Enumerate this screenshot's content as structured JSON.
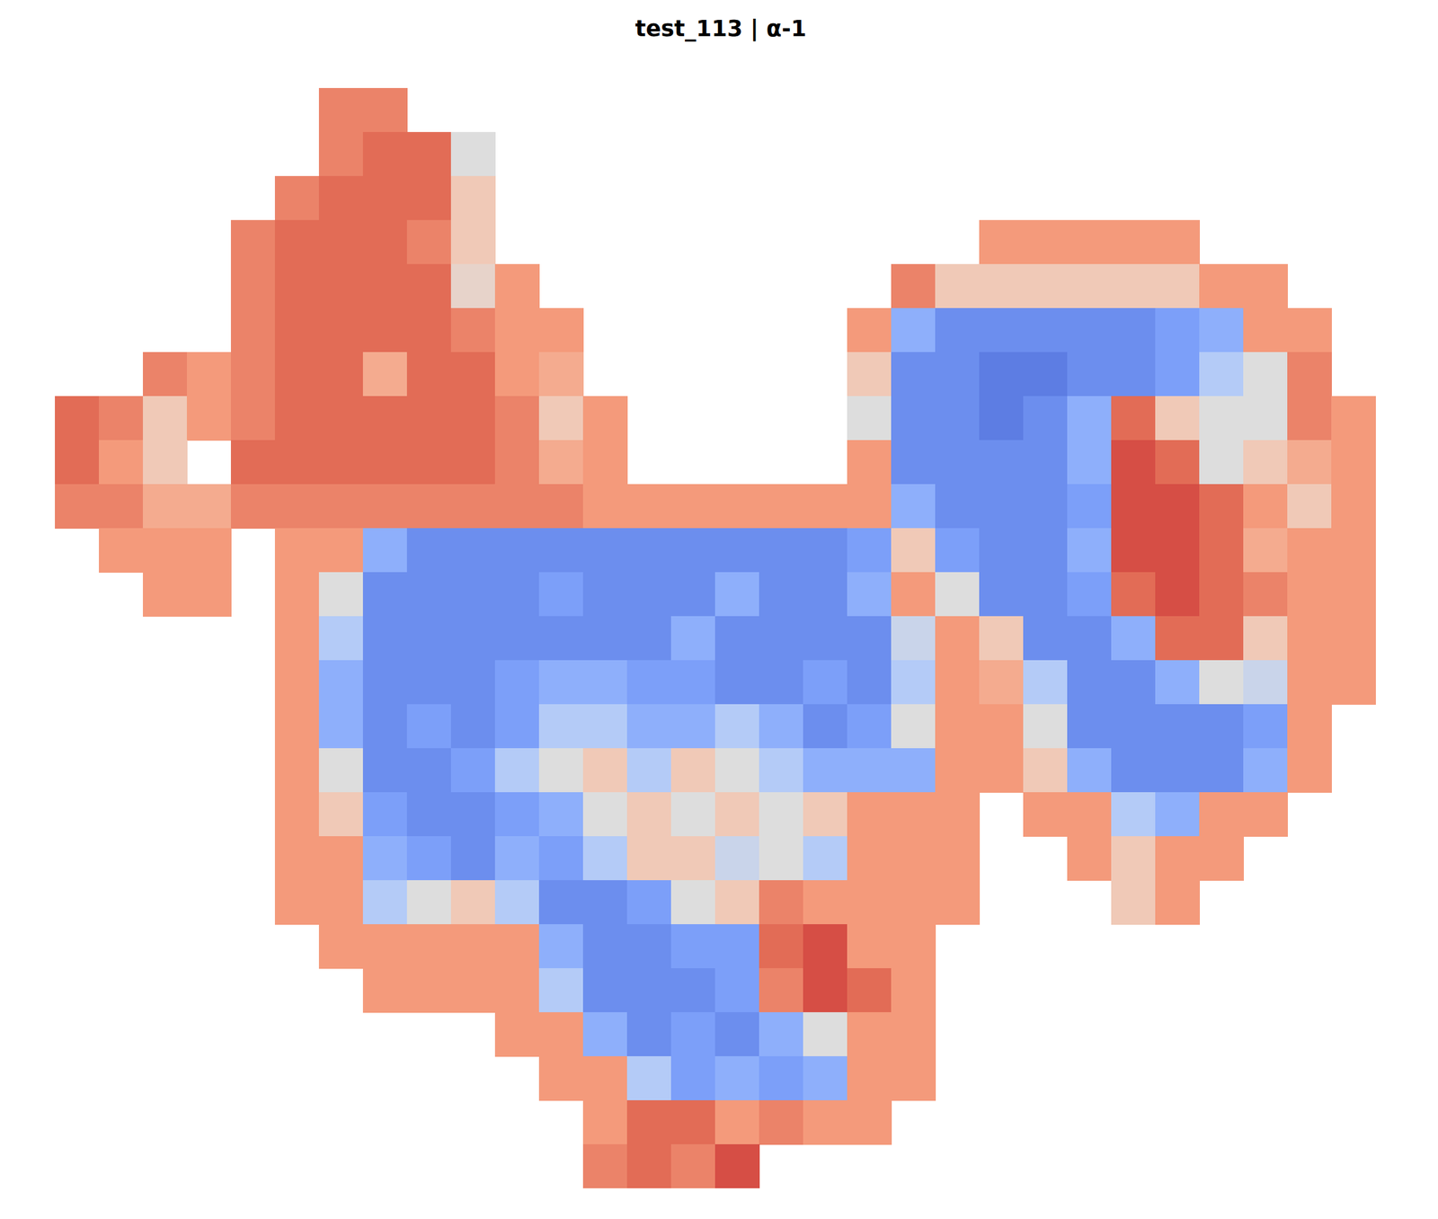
{
  "chart_data": {
    "type": "heatmap",
    "title": "test_113 | α-1",
    "tick_labels": false,
    "grid": false,
    "zlim": [
      0,
      1
    ],
    "z": [
      [
        null,
        null,
        null,
        null,
        null,
        null,
        0.8,
        0.8,
        null,
        null,
        null,
        null,
        null,
        null,
        null,
        null,
        null,
        null,
        null,
        null,
        null,
        null,
        null,
        null,
        null,
        null,
        null,
        null,
        null,
        null,
        null
      ],
      [
        null,
        null,
        null,
        null,
        null,
        null,
        0.8,
        0.85,
        0.85,
        0.5,
        null,
        null,
        null,
        null,
        null,
        null,
        null,
        null,
        null,
        null,
        null,
        null,
        null,
        null,
        null,
        null,
        null,
        null,
        null,
        null,
        null
      ],
      [
        null,
        null,
        null,
        null,
        null,
        0.8,
        0.85,
        0.85,
        0.85,
        0.6,
        null,
        null,
        null,
        null,
        null,
        null,
        null,
        null,
        null,
        null,
        null,
        null,
        null,
        null,
        null,
        null,
        null,
        null,
        null,
        null,
        null
      ],
      [
        null,
        null,
        null,
        null,
        0.8,
        0.85,
        0.85,
        0.85,
        0.8,
        0.6,
        null,
        null,
        null,
        null,
        null,
        null,
        null,
        null,
        null,
        null,
        null,
        0.75,
        0.75,
        0.75,
        0.75,
        0.75,
        null,
        null,
        null,
        null,
        null
      ],
      [
        null,
        null,
        null,
        null,
        0.8,
        0.85,
        0.85,
        0.85,
        0.85,
        0.55,
        0.75,
        null,
        null,
        null,
        null,
        null,
        null,
        null,
        null,
        0.8,
        0.6,
        0.6,
        0.6,
        0.6,
        0.6,
        0.6,
        0.75,
        0.75,
        null,
        null,
        null
      ],
      [
        null,
        null,
        null,
        null,
        0.8,
        0.85,
        0.85,
        0.85,
        0.85,
        0.8,
        0.75,
        0.75,
        null,
        null,
        null,
        null,
        null,
        null,
        0.75,
        0.3,
        0.2,
        0.2,
        0.2,
        0.2,
        0.2,
        0.25,
        0.3,
        0.75,
        0.75,
        null,
        null
      ],
      [
        null,
        null,
        0.8,
        0.75,
        0.8,
        0.85,
        0.85,
        0.7,
        0.85,
        0.85,
        0.75,
        0.7,
        null,
        null,
        null,
        null,
        null,
        null,
        0.6,
        0.2,
        0.2,
        0.15,
        0.15,
        0.2,
        0.2,
        0.25,
        0.4,
        0.5,
        0.8,
        null,
        null
      ],
      [
        0.85,
        0.8,
        0.6,
        0.75,
        0.8,
        0.85,
        0.85,
        0.85,
        0.85,
        0.85,
        0.8,
        0.6,
        0.75,
        null,
        null,
        null,
        null,
        null,
        0.5,
        0.2,
        0.2,
        0.15,
        0.2,
        0.3,
        0.85,
        0.6,
        0.5,
        0.5,
        0.8,
        0.75,
        null
      ],
      [
        0.85,
        0.75,
        0.6,
        null,
        0.85,
        0.85,
        0.85,
        0.85,
        0.85,
        0.85,
        0.8,
        0.7,
        0.75,
        null,
        null,
        null,
        null,
        null,
        0.75,
        0.2,
        0.2,
        0.2,
        0.2,
        0.3,
        0.9,
        0.85,
        0.5,
        0.6,
        0.7,
        0.75,
        null
      ],
      [
        0.8,
        0.8,
        0.7,
        0.7,
        0.8,
        0.8,
        0.8,
        0.8,
        0.8,
        0.8,
        0.8,
        0.8,
        0.75,
        0.75,
        0.75,
        0.75,
        0.75,
        0.75,
        0.75,
        0.3,
        0.2,
        0.2,
        0.2,
        0.25,
        0.9,
        0.9,
        0.85,
        0.75,
        0.6,
        0.75,
        null
      ],
      [
        null,
        0.75,
        0.75,
        0.75,
        null,
        0.75,
        0.75,
        0.3,
        0.2,
        0.2,
        0.2,
        0.2,
        0.2,
        0.2,
        0.2,
        0.2,
        0.2,
        0.2,
        0.25,
        0.6,
        0.25,
        0.2,
        0.2,
        0.3,
        0.9,
        0.9,
        0.85,
        0.7,
        0.75,
        0.75,
        null
      ],
      [
        null,
        null,
        0.75,
        0.75,
        null,
        0.75,
        0.5,
        0.2,
        0.2,
        0.2,
        0.2,
        0.25,
        0.2,
        0.2,
        0.2,
        0.3,
        0.2,
        0.2,
        0.3,
        0.75,
        0.5,
        0.2,
        0.2,
        0.25,
        0.85,
        0.9,
        0.85,
        0.8,
        0.75,
        0.75,
        null
      ],
      [
        null,
        null,
        null,
        null,
        null,
        0.75,
        0.4,
        0.2,
        0.2,
        0.2,
        0.2,
        0.2,
        0.2,
        0.2,
        0.3,
        0.2,
        0.2,
        0.2,
        0.2,
        0.45,
        0.75,
        0.6,
        0.2,
        0.2,
        0.3,
        0.85,
        0.85,
        0.6,
        0.75,
        0.75,
        null
      ],
      [
        null,
        null,
        null,
        null,
        null,
        0.75,
        0.3,
        0.2,
        0.2,
        0.2,
        0.25,
        0.3,
        0.3,
        0.25,
        0.25,
        0.2,
        0.2,
        0.25,
        0.2,
        0.4,
        0.75,
        0.7,
        0.4,
        0.2,
        0.2,
        0.3,
        0.5,
        0.45,
        0.75,
        0.75,
        null
      ],
      [
        null,
        null,
        null,
        null,
        null,
        0.75,
        0.3,
        0.2,
        0.25,
        0.2,
        0.25,
        0.4,
        0.4,
        0.3,
        0.3,
        0.4,
        0.3,
        0.2,
        0.25,
        0.5,
        0.75,
        0.75,
        0.5,
        0.2,
        0.2,
        0.2,
        0.2,
        0.25,
        0.75,
        null,
        null
      ],
      [
        null,
        null,
        null,
        null,
        null,
        0.75,
        0.5,
        0.2,
        0.2,
        0.25,
        0.4,
        0.5,
        0.6,
        0.4,
        0.6,
        0.5,
        0.4,
        0.3,
        0.3,
        0.3,
        0.75,
        0.75,
        0.6,
        0.3,
        0.2,
        0.2,
        0.2,
        0.3,
        0.75,
        null,
        null
      ],
      [
        null,
        null,
        null,
        null,
        null,
        0.75,
        0.6,
        0.25,
        0.2,
        0.2,
        0.25,
        0.3,
        0.5,
        0.6,
        0.5,
        0.6,
        0.5,
        0.6,
        0.75,
        0.75,
        0.75,
        null,
        0.75,
        0.75,
        0.4,
        0.3,
        0.75,
        0.75,
        null,
        null,
        null
      ],
      [
        null,
        null,
        null,
        null,
        null,
        0.75,
        0.75,
        0.3,
        0.25,
        0.2,
        0.3,
        0.25,
        0.4,
        0.6,
        0.6,
        0.45,
        0.5,
        0.4,
        0.75,
        0.75,
        0.75,
        null,
        null,
        0.75,
        0.6,
        0.75,
        0.75,
        null,
        null,
        null,
        null
      ],
      [
        null,
        null,
        null,
        null,
        null,
        0.75,
        0.75,
        0.4,
        0.5,
        0.6,
        0.4,
        0.2,
        0.2,
        0.25,
        0.5,
        0.6,
        0.8,
        0.75,
        0.75,
        0.75,
        0.75,
        null,
        null,
        null,
        0.6,
        0.75,
        null,
        null,
        null,
        null,
        null
      ],
      [
        null,
        null,
        null,
        null,
        null,
        null,
        0.75,
        0.75,
        0.75,
        0.75,
        0.75,
        0.3,
        0.2,
        0.2,
        0.25,
        0.25,
        0.85,
        0.9,
        0.75,
        0.75,
        null,
        null,
        null,
        null,
        null,
        null,
        null,
        null,
        null,
        null,
        null
      ],
      [
        null,
        null,
        null,
        null,
        null,
        null,
        null,
        0.75,
        0.75,
        0.75,
        0.75,
        0.4,
        0.2,
        0.2,
        0.2,
        0.25,
        0.8,
        0.9,
        0.85,
        0.75,
        null,
        null,
        null,
        null,
        null,
        null,
        null,
        null,
        null,
        null,
        null
      ],
      [
        null,
        null,
        null,
        null,
        null,
        null,
        null,
        null,
        null,
        null,
        0.75,
        0.75,
        0.3,
        0.2,
        0.25,
        0.2,
        0.3,
        0.5,
        0.75,
        0.75,
        null,
        null,
        null,
        null,
        null,
        null,
        null,
        null,
        null,
        null,
        null
      ],
      [
        null,
        null,
        null,
        null,
        null,
        null,
        null,
        null,
        null,
        null,
        null,
        0.75,
        0.75,
        0.4,
        0.25,
        0.3,
        0.25,
        0.3,
        0.75,
        0.75,
        null,
        null,
        null,
        null,
        null,
        null,
        null,
        null,
        null,
        null,
        null
      ],
      [
        null,
        null,
        null,
        null,
        null,
        null,
        null,
        null,
        null,
        null,
        null,
        null,
        0.75,
        0.85,
        0.85,
        0.75,
        0.8,
        0.75,
        0.75,
        null,
        null,
        null,
        null,
        null,
        null,
        null,
        null,
        null,
        null,
        null,
        null
      ],
      [
        null,
        null,
        null,
        null,
        null,
        null,
        null,
        null,
        null,
        null,
        null,
        null,
        0.8,
        0.85,
        0.8,
        0.9,
        null,
        null,
        null,
        null,
        null,
        null,
        null,
        null,
        null,
        null,
        null,
        null,
        null,
        null,
        null
      ]
    ]
  }
}
